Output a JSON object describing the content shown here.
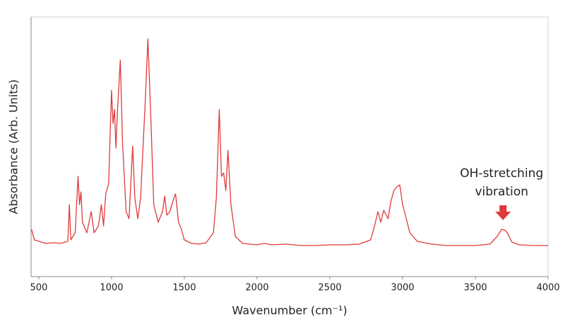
{
  "chart_data": {
    "type": "line",
    "x_label": "Wavenumber (cm⁻¹)",
    "y_label": "Absorbance (Arb. Units)",
    "annotation": [
      "OH-stretching",
      "vibration"
    ],
    "annotation_x": 3690,
    "x": [
      450,
      470,
      500,
      550,
      600,
      650,
      700,
      710,
      720,
      750,
      770,
      780,
      790,
      800,
      830,
      860,
      880,
      910,
      930,
      945,
      960,
      980,
      1000,
      1010,
      1020,
      1030,
      1040,
      1060,
      1075,
      1100,
      1120,
      1145,
      1160,
      1180,
      1200,
      1230,
      1250,
      1270,
      1290,
      1320,
      1350,
      1365,
      1380,
      1400,
      1430,
      1440,
      1460,
      1480,
      1500,
      1550,
      1600,
      1650,
      1700,
      1720,
      1740,
      1755,
      1770,
      1785,
      1800,
      1820,
      1850,
      1900,
      2000,
      2050,
      2100,
      2200,
      2300,
      2400,
      2500,
      2600,
      2700,
      2780,
      2810,
      2830,
      2850,
      2870,
      2900,
      2920,
      2940,
      2960,
      2980,
      3000,
      3050,
      3100,
      3200,
      3300,
      3400,
      3500,
      3600,
      3650,
      3680,
      3700,
      3720,
      3750,
      3800,
      3900,
      4000
    ],
    "series": [
      {
        "name": "Absorbance",
        "color": "#e03a3a",
        "values": [
          67,
          52,
          50,
          47,
          48,
          47,
          50,
          102,
          52,
          62,
          142,
          102,
          120,
          77,
          62,
          92,
          62,
          72,
          102,
          72,
          117,
          132,
          264,
          217,
          237,
          182,
          232,
          307,
          192,
          92,
          82,
          185,
          112,
          82,
          112,
          242,
          337,
          222,
          102,
          77,
          92,
          114,
          87,
          92,
          112,
          117,
          77,
          67,
          52,
          47,
          46,
          48,
          62,
          112,
          237,
          142,
          147,
          122,
          179,
          102,
          57,
          47,
          45,
          47,
          45,
          46,
          44,
          44,
          45,
          45,
          46,
          52,
          74,
          92,
          77,
          94,
          82,
          107,
          122,
          127,
          130,
          102,
          62,
          50,
          46,
          44,
          44,
          44,
          46,
          57,
          67,
          66,
          62,
          49,
          45,
          44,
          44
        ]
      }
    ],
    "xlim": [
      447,
      4000
    ],
    "xticks": [
      500,
      1000,
      1500,
      2000,
      2500,
      3000,
      3500,
      4000
    ],
    "ylim": [
      0,
      368
    ]
  }
}
